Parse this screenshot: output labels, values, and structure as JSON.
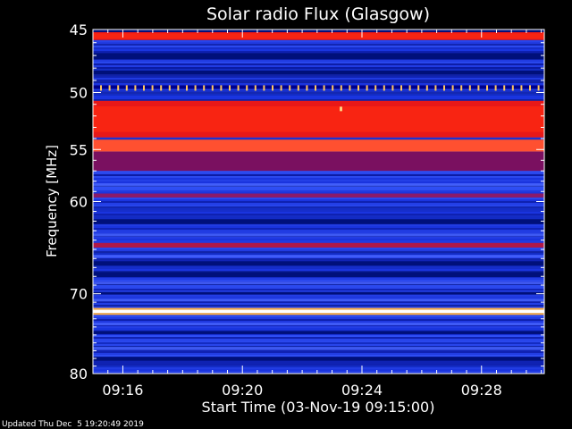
{
  "chart_data": {
    "type": "heatmap",
    "title": "Solar radio Flux (Glasgow)",
    "xlabel": "Start Time (03-Nov-19 09:15:00)",
    "ylabel": "Frequency [MHz]",
    "x_tick_labels": [
      "09:16",
      "09:20",
      "09:24",
      "09:28"
    ],
    "x_tick_minutes": [
      16,
      20,
      24,
      28
    ],
    "x_range_minutes": [
      15,
      30.1
    ],
    "y_tick_labels": [
      "45",
      "50",
      "55",
      "60",
      "70",
      "80"
    ],
    "y_ticks": [
      45,
      50,
      55,
      60,
      70,
      80
    ],
    "y_range_mhz": [
      45,
      80
    ],
    "y_scale": "log",
    "colormap": [
      "#00008b",
      "#1a2fd6",
      "#3a5cff",
      "#8a1a4a",
      "#d0102a",
      "#ff2a10",
      "#ff7a3a",
      "#ffffff"
    ],
    "background_level": "blue",
    "bands": [
      {
        "from_mhz": 45.2,
        "to_mhz": 45.8,
        "level": "red"
      },
      {
        "from_mhz": 49.4,
        "to_mhz": 49.7,
        "level": "dotted-yellow"
      },
      {
        "from_mhz": 50.7,
        "to_mhz": 53.9,
        "level": "red"
      },
      {
        "from_mhz": 54.1,
        "to_mhz": 55.2,
        "level": "bright-red"
      },
      {
        "from_mhz": 55.2,
        "to_mhz": 57.0,
        "level": "dark-red"
      },
      {
        "from_mhz": 59.2,
        "to_mhz": 59.6,
        "level": "purple"
      },
      {
        "from_mhz": 64.3,
        "to_mhz": 64.8,
        "level": "magenta"
      },
      {
        "from_mhz": 71.9,
        "to_mhz": 72.3,
        "level": "white"
      }
    ],
    "grid": false,
    "legend": "none"
  },
  "footer": {
    "updated": "Updated Thu Dec  5 19:20:49 2019"
  }
}
